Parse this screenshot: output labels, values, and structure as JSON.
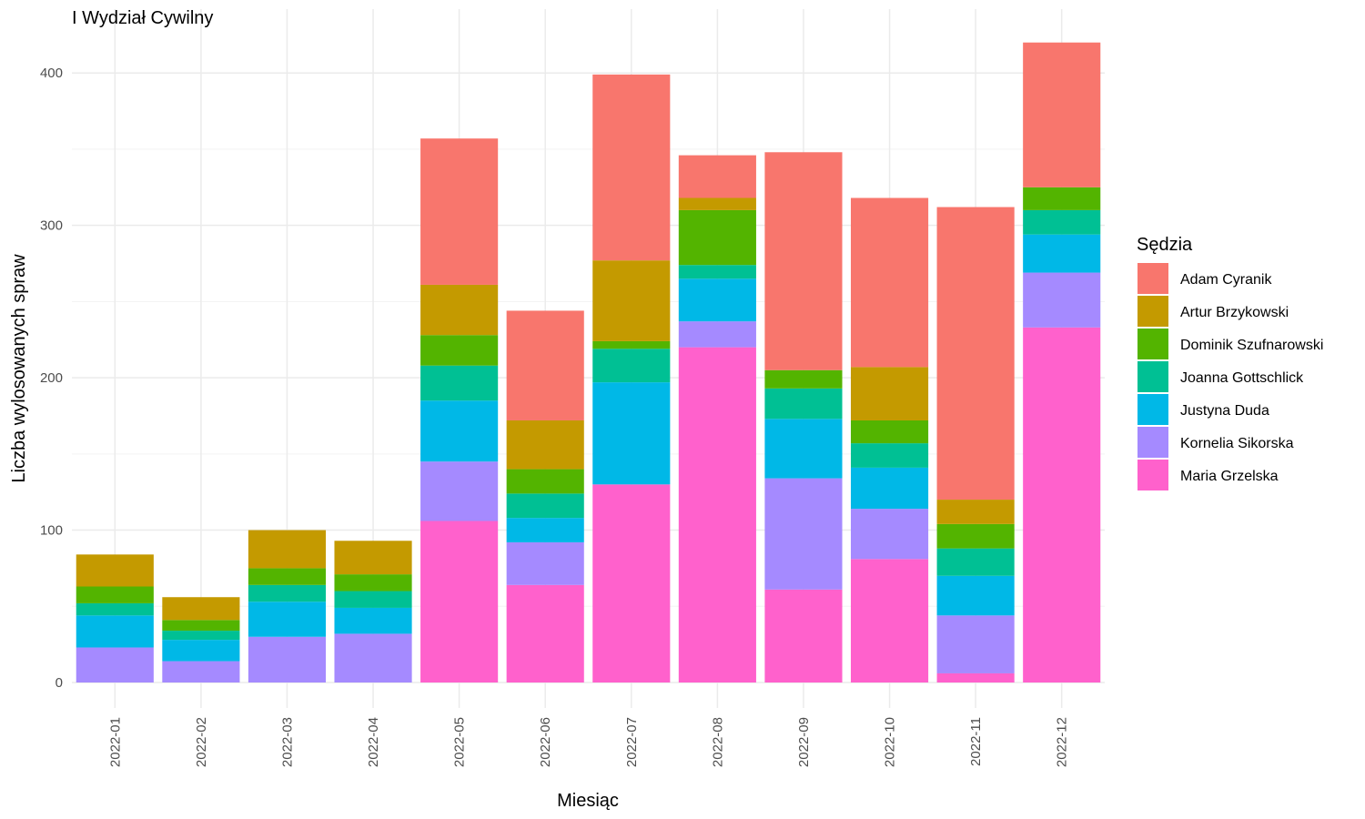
{
  "chart_data": {
    "type": "bar",
    "stacked": true,
    "title": "I Wydział Cywilny",
    "xlabel": "Miesiąc",
    "ylabel": "Liczba wylosowanych spraw",
    "ylim": [
      0,
      430
    ],
    "yticks": [
      0,
      100,
      200,
      300,
      400
    ],
    "grid": true,
    "legend_title": "Sędzia",
    "legend_position": "right",
    "categories": [
      "2022-01",
      "2022-02",
      "2022-03",
      "2022-04",
      "2022-05",
      "2022-06",
      "2022-07",
      "2022-08",
      "2022-09",
      "2022-10",
      "2022-11",
      "2022-12"
    ],
    "series": [
      {
        "name": "Maria Grzelska",
        "color": "#FF61CC",
        "values": [
          0,
          0,
          0,
          0,
          106,
          64,
          130,
          220,
          61,
          81,
          6,
          233
        ]
      },
      {
        "name": "Kornelia Sikorska",
        "color": "#A58AFF",
        "values": [
          23,
          14,
          30,
          32,
          39,
          28,
          0,
          17,
          73,
          33,
          38,
          36
        ]
      },
      {
        "name": "Justyna Duda",
        "color": "#00B8E7",
        "values": [
          21,
          14,
          23,
          17,
          40,
          16,
          67,
          28,
          39,
          27,
          26,
          25
        ]
      },
      {
        "name": "Joanna Gottschlick",
        "color": "#00C094",
        "values": [
          8,
          6,
          11,
          11,
          23,
          16,
          22,
          9,
          20,
          16,
          18,
          16
        ]
      },
      {
        "name": "Dominik Szufnarowski",
        "color": "#53B400",
        "values": [
          11,
          7,
          11,
          11,
          20,
          16,
          5,
          36,
          12,
          15,
          16,
          15
        ]
      },
      {
        "name": "Artur Brzykowski",
        "color": "#C49A00",
        "values": [
          21,
          15,
          25,
          22,
          33,
          32,
          53,
          8,
          0,
          35,
          16,
          0
        ]
      },
      {
        "name": "Adam Cyranik",
        "color": "#F8766D",
        "values": [
          0,
          0,
          0,
          0,
          96,
          72,
          122,
          28,
          143,
          111,
          192,
          95
        ]
      }
    ],
    "legend_order": [
      "Adam Cyranik",
      "Artur Brzykowski",
      "Dominik Szufnarowski",
      "Joanna Gottschlick",
      "Justyna Duda",
      "Kornelia Sikorska",
      "Maria Grzelska"
    ]
  }
}
